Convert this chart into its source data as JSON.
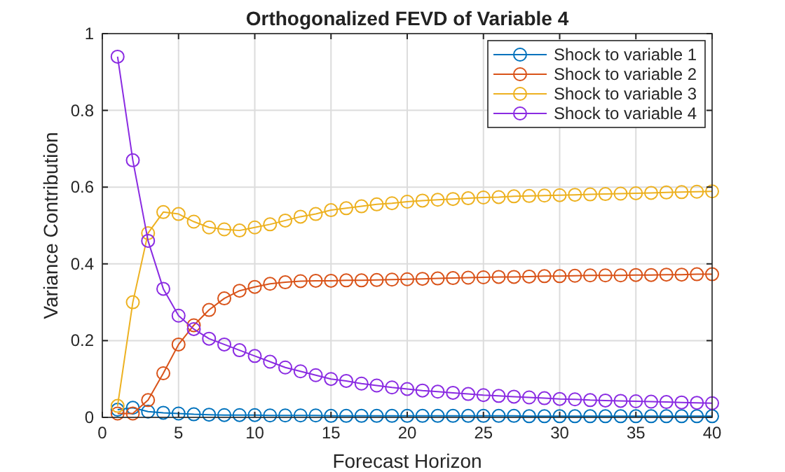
{
  "chart_data": {
    "type": "line",
    "title": "Orthogonalized FEVD of Variable 4",
    "xlabel": "Forecast Horizon",
    "ylabel": "Variance Contribution",
    "x": [
      1,
      2,
      3,
      4,
      5,
      6,
      7,
      8,
      9,
      10,
      11,
      12,
      13,
      14,
      15,
      16,
      17,
      18,
      19,
      20,
      21,
      22,
      23,
      24,
      25,
      26,
      27,
      28,
      29,
      30,
      31,
      32,
      33,
      34,
      35,
      36,
      37,
      38,
      39,
      40
    ],
    "xlim": [
      0,
      40
    ],
    "xticks": [
      0,
      5,
      10,
      15,
      20,
      25,
      30,
      35,
      40
    ],
    "ylim": [
      0,
      1
    ],
    "yticks": [
      0,
      0.2,
      0.4,
      0.6,
      0.8,
      1
    ],
    "grid": true,
    "legend": "top right",
    "marker": "circle",
    "line_style": "solid",
    "series": [
      {
        "name": "Shock to variable 1",
        "color": "#0072bd",
        "values": [
          0.02,
          0.025,
          0.015,
          0.012,
          0.01,
          0.008,
          0.007,
          0.006,
          0.006,
          0.006,
          0.005,
          0.005,
          0.005,
          0.005,
          0.004,
          0.004,
          0.004,
          0.004,
          0.004,
          0.004,
          0.004,
          0.004,
          0.004,
          0.004,
          0.004,
          0.004,
          0.004,
          0.003,
          0.003,
          0.003,
          0.003,
          0.003,
          0.003,
          0.003,
          0.003,
          0.003,
          0.003,
          0.003,
          0.003,
          0.003
        ]
      },
      {
        "name": "Shock to variable 2",
        "color": "#d95319",
        "values": [
          0.01,
          0.01,
          0.045,
          0.115,
          0.19,
          0.24,
          0.28,
          0.31,
          0.33,
          0.34,
          0.348,
          0.352,
          0.355,
          0.356,
          0.356,
          0.357,
          0.357,
          0.358,
          0.359,
          0.36,
          0.361,
          0.362,
          0.363,
          0.364,
          0.365,
          0.366,
          0.366,
          0.367,
          0.368,
          0.368,
          0.369,
          0.37,
          0.37,
          0.37,
          0.371,
          0.371,
          0.372,
          0.372,
          0.373,
          0.373
        ]
      },
      {
        "name": "Shock to variable 3",
        "color": "#edb120",
        "values": [
          0.03,
          0.3,
          0.48,
          0.535,
          0.53,
          0.51,
          0.495,
          0.49,
          0.487,
          0.495,
          0.503,
          0.513,
          0.523,
          0.53,
          0.54,
          0.545,
          0.55,
          0.555,
          0.558,
          0.562,
          0.565,
          0.567,
          0.569,
          0.571,
          0.573,
          0.574,
          0.576,
          0.577,
          0.578,
          0.579,
          0.58,
          0.581,
          0.582,
          0.583,
          0.584,
          0.585,
          0.586,
          0.587,
          0.588,
          0.589
        ]
      },
      {
        "name": "Shock to variable 4",
        "color": "#8a2be2",
        "values": [
          0.94,
          0.67,
          0.46,
          0.335,
          0.265,
          0.23,
          0.205,
          0.19,
          0.175,
          0.16,
          0.145,
          0.13,
          0.12,
          0.11,
          0.1,
          0.095,
          0.088,
          0.083,
          0.078,
          0.074,
          0.07,
          0.067,
          0.064,
          0.061,
          0.058,
          0.056,
          0.054,
          0.052,
          0.05,
          0.048,
          0.047,
          0.045,
          0.044,
          0.043,
          0.042,
          0.041,
          0.04,
          0.039,
          0.038,
          0.037
        ]
      }
    ]
  }
}
